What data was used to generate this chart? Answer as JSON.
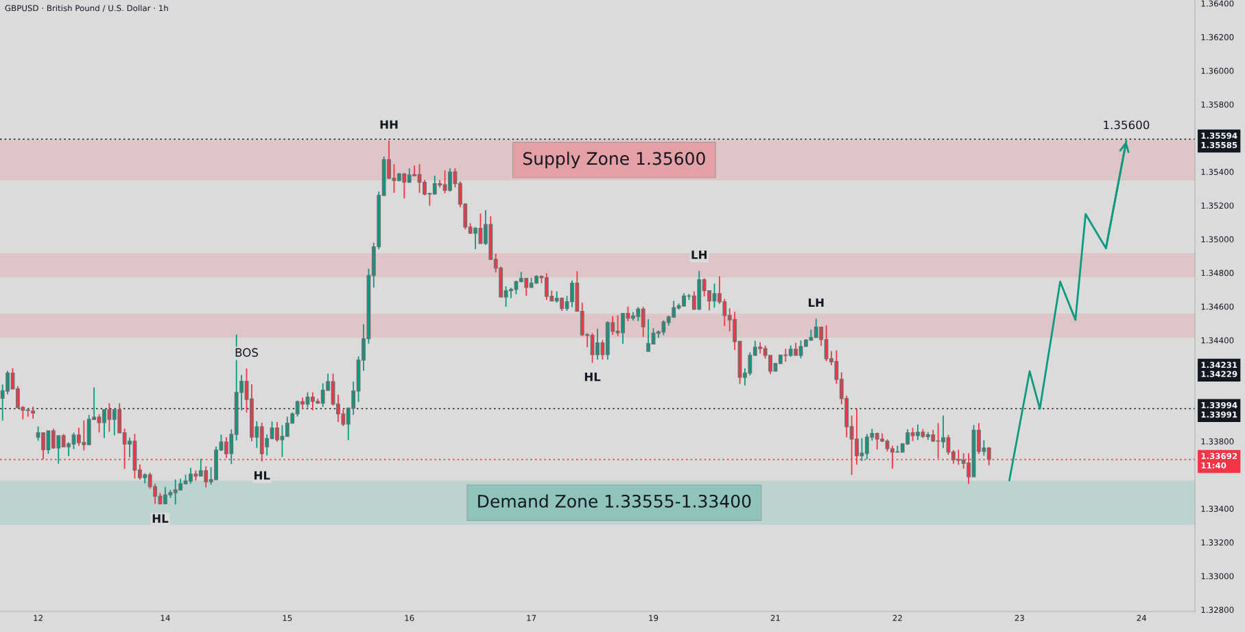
{
  "chart_data": {
    "type": "candlestick",
    "title": "GBPUSD · British Pound / U.S. Dollar · 1h",
    "categories": [
      null,
      null,
      null,
      null,
      null,
      null,
      null,
      "12",
      null,
      null,
      null,
      null,
      null,
      null,
      null,
      null,
      null,
      null,
      null,
      null,
      null,
      null,
      null,
      null,
      null,
      null,
      null,
      null,
      null,
      null,
      null,
      null,
      "14",
      null,
      null,
      null,
      null,
      null,
      null,
      null,
      null,
      null,
      null,
      null,
      null,
      null,
      null,
      null,
      null,
      null,
      null,
      null,
      null,
      null,
      null,
      null,
      "15",
      null,
      null,
      null,
      null,
      null,
      null,
      null,
      null,
      null,
      null,
      null,
      null,
      null,
      null,
      null,
      null,
      null,
      null,
      null,
      null,
      null,
      null,
      null,
      "16",
      null,
      null,
      null,
      null,
      null,
      null,
      null,
      null,
      null,
      null,
      null,
      null,
      null,
      null,
      null,
      null,
      null,
      null,
      null,
      null,
      null,
      null,
      null,
      "17",
      null,
      null,
      null,
      null,
      null,
      null,
      null,
      null,
      null,
      null,
      null,
      null,
      null,
      null,
      null,
      null,
      null,
      null,
      null,
      null,
      null,
      null,
      null,
      "19",
      null,
      null,
      null,
      null,
      null,
      null,
      null,
      null,
      null,
      null,
      null,
      null,
      null,
      null,
      null,
      null,
      null,
      null,
      null,
      null,
      null,
      null,
      null,
      "21",
      null,
      null,
      null,
      null,
      null,
      null,
      null,
      null,
      null,
      null,
      null,
      null,
      null,
      null,
      null,
      null,
      null,
      null,
      null,
      null,
      null,
      null,
      null,
      "22",
      null,
      null,
      null,
      null,
      null,
      null,
      null,
      null,
      null,
      null,
      null,
      null,
      null,
      null,
      null,
      null,
      null,
      null,
      null,
      null,
      null,
      null,
      null,
      "23",
      null,
      null,
      null,
      null,
      null,
      null,
      null,
      null,
      null,
      null,
      null,
      null,
      null,
      null,
      null,
      null,
      null,
      null,
      null,
      null,
      null,
      null,
      null,
      "24",
      null,
      null,
      null,
      null,
      null,
      null,
      null,
      null,
      null,
      null
    ],
    "ohlc": [
      [
        1.34056,
        1.34137,
        1.33923,
        1.341
      ],
      [
        1.34098,
        1.34218,
        1.34079,
        1.34205
      ],
      [
        1.34205,
        1.34234,
        1.34111,
        1.34111
      ],
      [
        1.34111,
        1.34127,
        1.33995,
        1.34001
      ],
      [
        1.34001,
        1.34009,
        1.3393,
        1.33984
      ],
      [
        1.33986,
        1.33994,
        1.33946,
        1.33983
      ],
      [
        1.3398,
        1.34006,
        1.33934,
        1.33968
      ],
      [
        1.33825,
        1.33888,
        1.33803,
        1.3385
      ],
      [
        1.3385,
        1.3385,
        1.33692,
        1.3375
      ],
      [
        1.3375,
        1.33862,
        1.33726,
        1.33862
      ],
      [
        1.33862,
        1.33875,
        1.33756,
        1.3376
      ],
      [
        1.3376,
        1.33833,
        1.33667,
        1.33833
      ],
      [
        1.33833,
        1.33843,
        1.33768,
        1.33768
      ],
      [
        1.33768,
        1.33794,
        1.33712,
        1.33784
      ],
      [
        1.33784,
        1.33851,
        1.33754,
        1.33837
      ],
      [
        1.33837,
        1.3388,
        1.33773,
        1.33792
      ],
      [
        1.33792,
        1.33924,
        1.33746,
        1.3378
      ],
      [
        1.3378,
        1.33957,
        1.3378,
        1.33931
      ],
      [
        1.3393,
        1.3412,
        1.33926,
        1.33943
      ],
      [
        1.33943,
        1.33961,
        1.33852,
        1.33911
      ],
      [
        1.33911,
        1.33988,
        1.3382,
        1.33988
      ],
      [
        1.33988,
        1.34026,
        1.33856,
        1.33931
      ],
      [
        1.33931,
        1.33988,
        1.33836,
        1.33988
      ],
      [
        1.33988,
        1.34026,
        1.3385,
        1.3385
      ],
      [
        1.3385,
        1.33875,
        1.33636,
        1.33784
      ],
      [
        1.33784,
        1.33822,
        1.33705,
        1.33801
      ],
      [
        1.33801,
        1.33843,
        1.33579,
        1.33629
      ],
      [
        1.33629,
        1.33663,
        1.33572,
        1.33584
      ],
      [
        1.33584,
        1.3361,
        1.3355,
        1.33601
      ],
      [
        1.33601,
        1.33614,
        1.33518,
        1.33531
      ],
      [
        1.33531,
        1.33548,
        1.33429,
        1.33474
      ],
      [
        1.33474,
        1.33493,
        1.33425,
        1.33429
      ],
      [
        1.33429,
        1.33529,
        1.33429,
        1.33482
      ],
      [
        1.33482,
        1.33511,
        1.33465,
        1.33495
      ],
      [
        1.33495,
        1.33573,
        1.33425,
        1.33511
      ],
      [
        1.33511,
        1.33577,
        1.33511,
        1.33548
      ],
      [
        1.33548,
        1.33602,
        1.33545,
        1.33564
      ],
      [
        1.33564,
        1.33643,
        1.33548,
        1.33605
      ],
      [
        1.33605,
        1.33627,
        1.33567,
        1.33593
      ],
      [
        1.33593,
        1.33696,
        1.33593,
        1.33625
      ],
      [
        1.33625,
        1.33651,
        1.33526,
        1.3356
      ],
      [
        1.3356,
        1.33647,
        1.33542,
        1.33572
      ],
      [
        1.33572,
        1.33769,
        1.33572,
        1.33748
      ],
      [
        1.33748,
        1.33839,
        1.33743,
        1.33796
      ],
      [
        1.33796,
        1.33825,
        1.33701,
        1.33727
      ],
      [
        1.33727,
        1.33871,
        1.33665,
        1.33841
      ],
      [
        1.33841,
        1.34434,
        1.33805,
        1.3409
      ],
      [
        1.3409,
        1.34194,
        1.33983,
        1.34156
      ],
      [
        1.34156,
        1.34232,
        1.33971,
        1.34049
      ],
      [
        1.34051,
        1.34139,
        1.338,
        1.33825
      ],
      [
        1.33825,
        1.33919,
        1.33761,
        1.33886
      ],
      [
        1.33886,
        1.33911,
        1.33681,
        1.33727
      ],
      [
        1.33768,
        1.33841,
        1.33716,
        1.33816
      ],
      [
        1.33816,
        1.33917,
        1.33812,
        1.33879
      ],
      [
        1.33879,
        1.33914,
        1.33797,
        1.33809
      ],
      [
        1.33809,
        1.33896,
        1.33707,
        1.33829
      ],
      [
        1.33829,
        1.33946,
        1.33829,
        1.33908
      ],
      [
        1.33908,
        1.33972,
        1.33905,
        1.33963
      ],
      [
        1.33963,
        1.34042,
        1.33947,
        1.34035
      ],
      [
        1.34035,
        1.34059,
        1.33992,
        1.34021
      ],
      [
        1.34021,
        1.34091,
        1.34001,
        1.34062
      ],
      [
        1.34062,
        1.34091,
        1.33984,
        1.34037
      ],
      [
        1.34037,
        1.34053,
        1.34023,
        1.34026
      ],
      [
        1.34026,
        1.34144,
        1.34004,
        1.34103
      ],
      [
        1.34103,
        1.34202,
        1.341,
        1.34154
      ],
      [
        1.34154,
        1.34202,
        1.34013,
        1.34021
      ],
      [
        1.34021,
        1.34077,
        1.33914,
        1.33963
      ],
      [
        1.33963,
        1.33989,
        1.3389,
        1.33902
      ],
      [
        1.33902,
        1.34001,
        1.33807,
        1.33997
      ],
      [
        1.33997,
        1.34154,
        1.33957,
        1.34099
      ],
      [
        1.34099,
        1.34304,
        1.34033,
        1.34282
      ],
      [
        1.34282,
        1.34495,
        1.34219,
        1.34409
      ],
      [
        1.34409,
        1.34825,
        1.3438,
        1.34784
      ],
      [
        1.34784,
        1.34979,
        1.34713,
        1.34955
      ],
      [
        1.34955,
        1.35282,
        1.3494,
        1.3526
      ],
      [
        1.3526,
        1.35491,
        1.35258,
        1.35472
      ],
      [
        1.35472,
        1.35585,
        1.35358,
        1.35362
      ],
      [
        1.35362,
        1.35445,
        1.35275,
        1.35348
      ],
      [
        1.35348,
        1.35393,
        1.35343,
        1.35387
      ],
      [
        1.35387,
        1.35392,
        1.35242,
        1.35338
      ],
      [
        1.35338,
        1.35421,
        1.35335,
        1.35381
      ],
      [
        1.35383,
        1.35437,
        1.35373,
        1.35377
      ],
      [
        1.35383,
        1.35445,
        1.35275,
        1.35338
      ],
      [
        1.35338,
        1.35352,
        1.3526,
        1.35268
      ],
      [
        1.35271,
        1.35275,
        1.35198,
        1.35268
      ],
      [
        1.35268,
        1.35377,
        1.35265,
        1.35329
      ],
      [
        1.35329,
        1.35351,
        1.35306,
        1.35322
      ],
      [
        1.35323,
        1.35409,
        1.35272,
        1.3529
      ],
      [
        1.3529,
        1.35421,
        1.35282,
        1.35399
      ],
      [
        1.354,
        1.35421,
        1.35307,
        1.3533
      ],
      [
        1.3533,
        1.35343,
        1.3519,
        1.35208
      ],
      [
        1.35208,
        1.35214,
        1.35058,
        1.35072
      ],
      [
        1.35072,
        1.35095,
        1.35031,
        1.35036
      ],
      [
        1.35036,
        1.35072,
        1.34941,
        1.35065
      ],
      [
        1.35065,
        1.35152,
        1.34975,
        1.34975
      ],
      [
        1.34975,
        1.35172,
        1.34966,
        1.35087
      ],
      [
        1.35087,
        1.35136,
        1.34877,
        1.3488
      ],
      [
        1.3488,
        1.34914,
        1.34803,
        1.34828
      ],
      [
        1.34828,
        1.34837,
        1.34657,
        1.34657
      ],
      [
        1.34657,
        1.3472,
        1.34599,
        1.34694
      ],
      [
        1.34694,
        1.34712,
        1.3465,
        1.34702
      ],
      [
        1.34702,
        1.34754,
        1.34673,
        1.34748
      ],
      [
        1.34748,
        1.34805,
        1.34743,
        1.34767
      ],
      [
        1.34767,
        1.34767,
        1.34664,
        1.34714
      ],
      [
        1.34714,
        1.34771,
        1.34712,
        1.34739
      ],
      [
        1.34739,
        1.34786,
        1.34735,
        1.34779
      ],
      [
        1.34779,
        1.34785,
        1.34739,
        1.34771
      ],
      [
        1.34771,
        1.34797,
        1.34639,
        1.34661
      ],
      [
        1.34661,
        1.34695,
        1.34633,
        1.34633
      ],
      [
        1.34633,
        1.3469,
        1.34623,
        1.34649
      ],
      [
        1.34649,
        1.34654,
        1.34574,
        1.34588
      ],
      [
        1.34588,
        1.34663,
        1.34574,
        1.34629
      ],
      [
        1.34629,
        1.34755,
        1.34596,
        1.34739
      ],
      [
        1.34739,
        1.34809,
        1.34572,
        1.34572
      ],
      [
        1.34572,
        1.34622,
        1.34424,
        1.34433
      ],
      [
        1.34433,
        1.34442,
        1.34358,
        1.34429
      ],
      [
        1.34429,
        1.34442,
        1.34266,
        1.34315
      ],
      [
        1.34315,
        1.34467,
        1.34285,
        1.34384
      ],
      [
        1.34384,
        1.34402,
        1.34285,
        1.34315
      ],
      [
        1.34315,
        1.34512,
        1.34285,
        1.34504
      ],
      [
        1.34504,
        1.34544,
        1.34433,
        1.34453
      ],
      [
        1.34453,
        1.34548,
        1.34424,
        1.34445
      ],
      [
        1.34445,
        1.34559,
        1.34379,
        1.34559
      ],
      [
        1.34559,
        1.34599,
        1.34513,
        1.34531
      ],
      [
        1.34531,
        1.34567,
        1.34517,
        1.34544
      ],
      [
        1.34541,
        1.34597,
        1.34514,
        1.34585
      ],
      [
        1.34585,
        1.34599,
        1.34419,
        1.3448
      ],
      [
        1.34334,
        1.34524,
        1.34334,
        1.3438
      ],
      [
        1.34378,
        1.34471,
        1.34378,
        1.34442
      ],
      [
        1.34441,
        1.34457,
        1.34415,
        1.3445
      ],
      [
        1.34449,
        1.34518,
        1.3443,
        1.34508
      ],
      [
        1.34506,
        1.34546,
        1.34487,
        1.34539
      ],
      [
        1.34537,
        1.34634,
        1.34533,
        1.34593
      ],
      [
        1.34592,
        1.34618,
        1.34582,
        1.34605
      ],
      [
        1.34603,
        1.34679,
        1.34603,
        1.34662
      ],
      [
        1.34662,
        1.34675,
        1.34639,
        1.34662
      ],
      [
        1.34662,
        1.34691,
        1.3458,
        1.34584
      ],
      [
        1.34584,
        1.34812,
        1.34578,
        1.34759
      ],
      [
        1.34759,
        1.34768,
        1.3466,
        1.34694
      ],
      [
        1.34694,
        1.34694,
        1.34578,
        1.34633
      ],
      [
        1.34633,
        1.34736,
        1.34593,
        1.34677
      ],
      [
        1.34677,
        1.34779,
        1.34616,
        1.34628
      ],
      [
        1.34628,
        1.34646,
        1.34484,
        1.34547
      ],
      [
        1.34547,
        1.34589,
        1.34453,
        1.34521
      ],
      [
        1.34523,
        1.34569,
        1.34342,
        1.34392
      ],
      [
        1.34393,
        1.34393,
        1.34141,
        1.3418
      ],
      [
        1.3418,
        1.34233,
        1.34131,
        1.34205
      ],
      [
        1.34205,
        1.34328,
        1.34191,
        1.3431
      ],
      [
        1.3431,
        1.34397,
        1.3431,
        1.34359
      ],
      [
        1.34359,
        1.34388,
        1.34321,
        1.34351
      ],
      [
        1.34351,
        1.34368,
        1.34291,
        1.3431
      ],
      [
        1.3431,
        1.3431,
        1.34199,
        1.34217
      ],
      [
        1.34217,
        1.34266,
        1.34217,
        1.34262
      ],
      [
        1.34262,
        1.34313,
        1.34262,
        1.34312
      ],
      [
        1.34312,
        1.34349,
        1.34272,
        1.3431
      ],
      [
        1.3431,
        1.34369,
        1.34301,
        1.34347
      ],
      [
        1.34347,
        1.34385,
        1.3431,
        1.3431
      ],
      [
        1.3431,
        1.34399,
        1.34293,
        1.34363
      ],
      [
        1.34363,
        1.34407,
        1.34363,
        1.344
      ],
      [
        1.344,
        1.34463,
        1.344,
        1.34416
      ],
      [
        1.34416,
        1.34528,
        1.34416,
        1.34478
      ],
      [
        1.34478,
        1.34478,
        1.34366,
        1.34404
      ],
      [
        1.34404,
        1.34489,
        1.34276,
        1.3429
      ],
      [
        1.3429,
        1.34335,
        1.34252,
        1.34272
      ],
      [
        1.34274,
        1.3434,
        1.34141,
        1.34168
      ],
      [
        1.34168,
        1.34209,
        1.3402,
        1.34054
      ],
      [
        1.34054,
        1.34071,
        1.33824,
        1.33887
      ],
      [
        1.33887,
        1.33953,
        1.336,
        1.33813
      ],
      [
        1.33813,
        1.33994,
        1.33661,
        1.33715
      ],
      [
        1.33715,
        1.33819,
        1.33683,
        1.33729
      ],
      [
        1.33728,
        1.33843,
        1.33694,
        1.33825
      ],
      [
        1.33825,
        1.33874,
        1.33804,
        1.33846
      ],
      [
        1.33846,
        1.33851,
        1.33751,
        1.33813
      ],
      [
        1.33813,
        1.33847,
        1.33796,
        1.33801
      ],
      [
        1.33801,
        1.33811,
        1.33739,
        1.33756
      ],
      [
        1.33756,
        1.33774,
        1.33637,
        1.33736
      ],
      [
        1.33736,
        1.33774,
        1.33734,
        1.33737
      ],
      [
        1.33736,
        1.33785,
        1.33733,
        1.33785
      ],
      [
        1.33785,
        1.33872,
        1.33778,
        1.3385
      ],
      [
        1.3385,
        1.3388,
        1.33801,
        1.33834
      ],
      [
        1.33834,
        1.339,
        1.33808,
        1.33854
      ],
      [
        1.33854,
        1.33872,
        1.3382,
        1.3383
      ],
      [
        1.33828,
        1.33855,
        1.33808,
        1.33838
      ],
      [
        1.33838,
        1.33868,
        1.33796,
        1.33801
      ],
      [
        1.33802,
        1.33908,
        1.33698,
        1.33801
      ],
      [
        1.33797,
        1.33953,
        1.3376,
        1.33821
      ],
      [
        1.33821,
        1.33838,
        1.3372,
        1.33736
      ],
      [
        1.33736,
        1.33748,
        1.33667,
        1.33691
      ],
      [
        1.33691,
        1.33749,
        1.33661,
        1.33688
      ],
      [
        1.33688,
        1.33729,
        1.33638,
        1.33669
      ],
      [
        1.33671,
        1.33729,
        1.33547,
        1.33589
      ],
      [
        1.33589,
        1.33896,
        1.33589,
        1.33866
      ],
      [
        1.33866,
        1.33908,
        1.33724,
        1.3374
      ],
      [
        1.3374,
        1.33806,
        1.33715,
        1.3376
      ],
      [
        1.3376,
        1.33766,
        1.33657,
        1.33692
      ],
      null,
      null,
      null,
      null,
      null,
      null,
      null,
      null,
      null,
      null,
      null,
      null,
      null,
      null,
      null,
      null,
      null,
      null,
      null,
      null,
      null,
      null,
      null,
      null,
      null,
      null,
      null,
      null,
      null,
      null,
      null,
      null,
      null,
      null,
      null,
      null,
      null,
      null,
      null,
      null
    ],
    "ylim": [
      1.3279,
      1.3642
    ],
    "yticks": [
      {
        "value": 1.364,
        "label": "1.36400"
      },
      {
        "value": 1.362,
        "label": "1.36200"
      },
      {
        "value": 1.36,
        "label": "1.36000"
      },
      {
        "value": 1.358,
        "label": "1.35800"
      },
      {
        "value": 1.354,
        "label": "1.35400"
      },
      {
        "value": 1.352,
        "label": "1.35200"
      },
      {
        "value": 1.35,
        "label": "1.35000"
      },
      {
        "value": 1.348,
        "label": "1.34800"
      },
      {
        "value": 1.346,
        "label": "1.34600"
      },
      {
        "value": 1.344,
        "label": "1.34400"
      },
      {
        "value": 1.34231,
        "label": "1.34231\n1.34229"
      },
      {
        "value": 1.338,
        "label": "1.33800"
      },
      {
        "value": 1.334,
        "label": "1.33400"
      },
      {
        "value": 1.332,
        "label": "1.33200"
      },
      {
        "value": 1.33,
        "label": "1.33000"
      },
      {
        "value": 1.328,
        "label": "1.32800"
      }
    ],
    "series": [
      {
        "type": "line",
        "color": "#089981",
        "values": [
          null,
          null,
          null,
          null,
          null,
          null,
          null,
          null,
          null,
          null,
          null,
          null,
          null,
          null,
          null,
          null,
          null,
          null,
          null,
          null,
          null,
          null,
          null,
          null,
          null,
          null,
          null,
          null,
          null,
          null,
          null,
          null,
          null,
          null,
          null,
          null,
          null,
          null,
          null,
          null,
          null,
          null,
          null,
          null,
          null,
          null,
          null,
          null,
          null,
          null,
          null,
          null,
          null,
          null,
          null,
          null,
          null,
          null,
          null,
          null,
          null,
          null,
          null,
          null,
          null,
          null,
          null,
          null,
          null,
          null,
          null,
          null,
          null,
          null,
          null,
          null,
          null,
          null,
          null,
          null,
          null,
          null,
          null,
          null,
          null,
          null,
          null,
          null,
          null,
          null,
          null,
          null,
          null,
          null,
          null,
          null,
          null,
          null,
          null,
          null,
          null,
          null,
          null,
          null,
          null,
          null,
          null,
          null,
          null,
          null,
          null,
          null,
          null,
          null,
          null,
          null,
          null,
          null,
          null,
          null,
          null,
          null,
          null,
          null,
          null,
          null,
          null,
          null,
          null,
          null,
          null,
          null,
          null,
          null,
          null,
          null,
          null,
          null,
          null,
          null,
          null,
          null,
          null,
          null,
          null,
          null,
          null,
          null,
          null,
          null,
          null,
          null,
          null,
          null,
          null,
          null,
          null,
          null,
          null,
          null,
          null,
          null,
          null,
          null,
          null,
          null,
          null,
          null,
          null,
          null,
          null,
          null,
          null,
          null,
          null,
          null,
          null,
          null,
          null,
          null,
          null,
          null,
          null,
          null,
          null,
          null,
          null,
          null,
          null,
          null,
          null,
          null,
          null,
          null,
          null,
          null,
          null,
          null,
          1.33568,
          null,
          null,
          null,
          1.34215,
          null,
          1.33993,
          null,
          null,
          null,
          1.34748,
          null,
          null,
          1.34521,
          null,
          1.35149,
          null,
          null,
          null,
          1.34946,
          null,
          null,
          null,
          1.35583,
          null,
          null,
          null,
          null,
          null,
          null,
          null,
          null,
          null,
          null,
          null,
          null,
          null
        ]
      }
    ],
    "bands": [
      {
        "axis": "y",
        "from": 1.35352,
        "to": 1.35588,
        "label": "Supply Zone 1.35600",
        "color": "#f23645"
      },
      {
        "axis": "y",
        "from": 1.34776,
        "to": 1.34913,
        "label": null,
        "color": "#f23645"
      },
      {
        "axis": "y",
        "from": 1.34418,
        "to": 1.34555,
        "label": null,
        "color": "#f23645"
      },
      {
        "axis": "y",
        "from": 1.33308,
        "to": 1.33563,
        "label": "Demand Zone 1.33555-1.33400",
        "color": "#089981"
      }
    ],
    "ref_lines": [
      {
        "axis": "y",
        "value": 1.35594,
        "label": "1.35594\n1.35585",
        "color": "#131722",
        "line_style": "dotted"
      },
      {
        "axis": "y",
        "value": 1.33994,
        "label": "1.33994\n1.33991",
        "color": "#131722",
        "line_style": "dotted"
      },
      {
        "axis": "y",
        "value": 1.33692,
        "label": "1.33692\n11:40",
        "color": "#f23645",
        "line_style": "dotted"
      }
    ],
    "annotations": [
      {
        "text": "HH",
        "y": 1.35585
      },
      {
        "text": "HL",
        "y": 1.33425
      },
      {
        "text": "BOS",
        "y": 1.34232
      },
      {
        "text": "HL",
        "y": 1.33681
      },
      {
        "text": "HL",
        "y": 1.34266
      },
      {
        "text": "LH",
        "y": 1.34812
      },
      {
        "text": "LH",
        "y": 1.34528
      },
      {
        "text": "1.35600",
        "y": 1.35583
      }
    ]
  }
}
